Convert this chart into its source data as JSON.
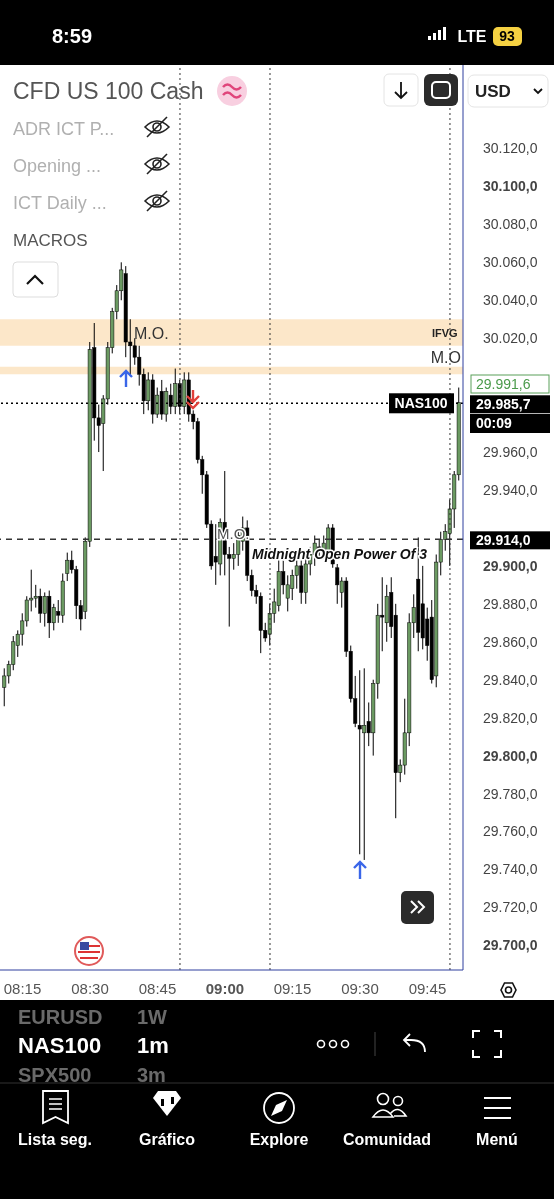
{
  "chart_data": {
    "type": "candlestick",
    "title": "CFD US 100 Cash",
    "x": [
      8.1833,
      8.2,
      8.2167,
      8.2333,
      8.25,
      8.2667,
      8.2833,
      8.3,
      8.3167,
      8.3333,
      8.35,
      8.3667,
      8.3833,
      8.4,
      8.4167,
      8.4333,
      8.45,
      8.4667,
      8.4833,
      8.5,
      8.5167,
      8.5333,
      8.55,
      8.5667,
      8.5833,
      8.6,
      8.6167,
      8.6333,
      8.65,
      8.6667,
      8.6833,
      8.7,
      8.7167,
      8.7333,
      8.75,
      8.7667,
      8.7833,
      8.8,
      8.8167,
      8.8333,
      8.85,
      8.8667,
      8.8833,
      8.9,
      8.9167,
      8.9333,
      8.95,
      8.9667,
      8.9833,
      9.0,
      9.0167,
      9.0333,
      9.05,
      9.0667,
      9.0833,
      9.1,
      9.1167,
      9.1333,
      9.15,
      9.1667,
      9.1833,
      9.2,
      9.2167,
      9.2333,
      9.25,
      9.2667,
      9.2833,
      9.3,
      9.3167,
      9.3333,
      9.35,
      9.3667,
      9.3833,
      9.4,
      9.4167,
      9.4333,
      9.45,
      9.4667,
      9.4833,
      9.5,
      9.5167,
      9.5333,
      9.55,
      9.5667,
      9.5833,
      9.6,
      9.6167,
      9.6333,
      9.65,
      9.6667,
      9.6833,
      9.7,
      9.7167,
      9.7333,
      9.75,
      9.7667,
      9.7833,
      9.8,
      9.8167,
      9.8333,
      9.85,
      9.8667
    ],
    "ohlc": [
      [
        29836,
        29846,
        29826,
        29842
      ],
      [
        29842,
        29850,
        29838,
        29848
      ],
      [
        29848,
        29863,
        29845,
        29860
      ],
      [
        29858,
        29866,
        29852,
        29864
      ],
      [
        29864,
        29875,
        29858,
        29871
      ],
      [
        29871,
        29884,
        29868,
        29882
      ],
      [
        29882,
        29898,
        29876,
        29883
      ],
      [
        29883,
        29890,
        29878,
        29884
      ],
      [
        29884,
        29888,
        29870,
        29875
      ],
      [
        29875,
        29886,
        29868,
        29884
      ],
      [
        29884,
        29887,
        29862,
        29870
      ],
      [
        29870,
        29880,
        29866,
        29878
      ],
      [
        29876,
        29882,
        29870,
        29874
      ],
      [
        29874,
        29896,
        29870,
        29892
      ],
      [
        29896,
        29907,
        29892,
        29903
      ],
      [
        29903,
        29908,
        29896,
        29898
      ],
      [
        29898,
        29900,
        29872,
        29879
      ],
      [
        29879,
        29882,
        29866,
        29872
      ],
      [
        29876,
        29915,
        29872,
        29913
      ],
      [
        29913,
        30018,
        29910,
        30014
      ],
      [
        30015,
        30028,
        29966,
        29978
      ],
      [
        29978,
        29985,
        29960,
        29974
      ],
      [
        29975,
        29990,
        29950,
        29988
      ],
      [
        29988,
        30018,
        29985,
        30015
      ],
      [
        30015,
        30036,
        30012,
        30034
      ],
      [
        30034,
        30048,
        30030,
        30045
      ],
      [
        30045,
        30060,
        30040,
        30056
      ],
      [
        30054,
        30058,
        30010,
        30018
      ],
      [
        30018,
        30030,
        30000,
        30016
      ],
      [
        30016,
        30020,
        30006,
        30010
      ],
      [
        30010,
        30016,
        29995,
        30001
      ],
      [
        30001,
        30004,
        29980,
        29987
      ],
      [
        29987,
        30002,
        29982,
        29998
      ],
      [
        29998,
        30001,
        29975,
        29980
      ],
      [
        29980,
        29994,
        29978,
        29990
      ],
      [
        29992,
        29998,
        29977,
        29980
      ],
      [
        29980,
        29994,
        29976,
        29992
      ],
      [
        29990,
        29996,
        29980,
        29984
      ],
      [
        29984,
        30004,
        29980,
        29996
      ],
      [
        29996,
        29998,
        29980,
        29984
      ],
      [
        29984,
        30002,
        29980,
        29998
      ],
      [
        29998,
        30002,
        29976,
        29980
      ],
      [
        29980,
        29982,
        29972,
        29976
      ],
      [
        29976,
        29978,
        29954,
        29956
      ],
      [
        29956,
        29958,
        29938,
        29948
      ],
      [
        29948,
        29950,
        29920,
        29922
      ],
      [
        29922,
        29924,
        29898,
        29900
      ],
      [
        29905,
        29922,
        29890,
        29902
      ],
      [
        29901,
        29925,
        29895,
        29923
      ],
      [
        29923,
        29950,
        29895,
        29906
      ],
      [
        29906,
        29910,
        29868,
        29904
      ],
      [
        29904,
        29912,
        29898,
        29906
      ],
      [
        29906,
        29918,
        29900,
        29916
      ],
      [
        29913,
        29926,
        29908,
        29920
      ],
      [
        29920,
        29924,
        29892,
        29895
      ],
      [
        29895,
        29898,
        29884,
        29887
      ],
      [
        29887,
        29890,
        29880,
        29884
      ],
      [
        29884,
        29886,
        29854,
        29866
      ],
      [
        29866,
        29870,
        29860,
        29862
      ],
      [
        29864,
        29880,
        29858,
        29875
      ],
      [
        29875,
        29888,
        29870,
        29881
      ],
      [
        29879,
        29904,
        29876,
        29897
      ],
      [
        29897,
        29903,
        29885,
        29890
      ],
      [
        29883,
        29895,
        29876,
        29890
      ],
      [
        29888,
        29898,
        29882,
        29895
      ],
      [
        29895,
        29904,
        29888,
        29900
      ],
      [
        29900,
        29903,
        29880,
        29886
      ],
      [
        29886,
        29905,
        29880,
        29901
      ],
      [
        29901,
        29910,
        29895,
        29906
      ],
      [
        29906,
        29916,
        29900,
        29912
      ],
      [
        29910,
        29914,
        29904,
        29908
      ],
      [
        29908,
        29916,
        29904,
        29912
      ],
      [
        29908,
        29922,
        29904,
        29920
      ],
      [
        29920,
        29922,
        29899,
        29901
      ],
      [
        29899,
        29901,
        29880,
        29890
      ],
      [
        29886,
        29894,
        29878,
        29892
      ],
      [
        29892,
        29894,
        29852,
        29855
      ],
      [
        29855,
        29858,
        29828,
        29830
      ],
      [
        29830,
        29842,
        29815,
        29817
      ],
      [
        29816,
        29845,
        29748,
        29814
      ],
      [
        29812,
        29846,
        29745,
        29816
      ],
      [
        29818,
        29828,
        29805,
        29812
      ],
      [
        29812,
        29840,
        29800,
        29838
      ],
      [
        29838,
        29880,
        29830,
        29874
      ],
      [
        29874,
        29894,
        29855,
        29873
      ],
      [
        29870,
        29890,
        29860,
        29884
      ],
      [
        29886,
        29894,
        29862,
        29868
      ],
      [
        29874,
        29880,
        29767,
        29791
      ],
      [
        29791,
        29798,
        29786,
        29795
      ],
      [
        29795,
        29830,
        29790,
        29812
      ],
      [
        29812,
        29875,
        29805,
        29870
      ],
      [
        29870,
        29885,
        29862,
        29878
      ],
      [
        29893,
        29915,
        29855,
        29865
      ],
      [
        29880,
        29900,
        29856,
        29862
      ],
      [
        29872,
        29878,
        29850,
        29858
      ],
      [
        29873,
        29882,
        29838,
        29840
      ],
      [
        29842,
        29906,
        29836,
        29902
      ],
      [
        29902,
        29918,
        29895,
        29914
      ],
      [
        29914,
        29922,
        29908,
        29918
      ],
      [
        29917,
        29935,
        29900,
        29930
      ],
      [
        29930,
        29950,
        29920,
        29948
      ],
      [
        29948,
        29994,
        29945,
        29986
      ]
    ],
    "xlim": [
      8.1667,
      9.8816
    ],
    "xticks": [
      {
        "value": 8.25,
        "label": "08:15"
      },
      {
        "value": 8.5,
        "label": "08:30"
      },
      {
        "value": 8.75,
        "label": "08:45"
      },
      {
        "value": 9,
        "label": "09:00"
      },
      {
        "value": 9.25,
        "label": "09:15"
      },
      {
        "value": 9.5,
        "label": "09:30"
      },
      {
        "value": 9.75,
        "label": "09:45"
      }
    ],
    "ylim": [
      29687,
      30164
    ],
    "yticks": [
      {
        "value": 29700,
        "label": "29.700,0"
      },
      {
        "value": 29720,
        "label": "29.720,0"
      },
      {
        "value": 29740,
        "label": "29.740,0"
      },
      {
        "value": 29760,
        "label": "29.760,0"
      },
      {
        "value": 29780,
        "label": "29.780,0"
      },
      {
        "value": 29800,
        "label": "29.800,0"
      },
      {
        "value": 29820,
        "label": "29.820,0"
      },
      {
        "value": 29840,
        "label": "29.840,0"
      },
      {
        "value": 29860,
        "label": "29.860,0"
      },
      {
        "value": 29880,
        "label": "29.880,0"
      },
      {
        "value": 29900,
        "label": "29.900,0"
      },
      {
        "value": 29940,
        "label": "29.940,0"
      },
      {
        "value": 29960,
        "label": "29.960,0"
      },
      {
        "value": 30020,
        "label": "30.020,0"
      },
      {
        "value": 30040,
        "label": "30.040,0"
      },
      {
        "value": 30060,
        "label": "30.060,0"
      },
      {
        "value": 30080,
        "label": "30.080,0"
      },
      {
        "value": 30100,
        "label": "30.100,0"
      },
      {
        "value": 30120,
        "label": "30.120,0"
      }
    ],
    "ref_lines": [
      {
        "axis": "y",
        "value": 29985.7,
        "label": "29.985,7",
        "line_style": "dotted",
        "color": "#000000"
      },
      {
        "axis": "y",
        "value": 29914,
        "label": "29.914,0",
        "line_style": "dashed",
        "color": "#333333"
      },
      {
        "axis": "x",
        "value": 8.8333,
        "line_style": "dotted",
        "color": "#333333"
      },
      {
        "axis": "x",
        "value": 9.1667,
        "line_style": "dotted",
        "color": "#333333"
      },
      {
        "axis": "x",
        "value": 9.8333,
        "line_style": "dotted",
        "color": "#333333"
      }
    ],
    "bands": [
      {
        "axis": "y",
        "from": 30016,
        "to": 30030,
        "label": "M.O.",
        "color": "#fbe3c0"
      },
      {
        "axis": "y",
        "from": 30001,
        "to": 30005,
        "label": "M.O",
        "color": "#fbe3c0"
      }
    ],
    "annotations": [
      "8:59",
      "LTE",
      "93",
      "ADR ICT P...",
      "Opening ...",
      "ICT Daily ...",
      "MACROS",
      "USD",
      "EURUSD",
      "1W",
      "NAS100",
      "1m",
      "SPX500",
      "3m",
      "Lista seg.",
      "Gráfico",
      "Explore",
      "Comunidad",
      "Menú",
      "IFVG",
      "29.991,6",
      "00:09",
      {
        "text": "Midnight Open Power Of 3",
        "x": 9.1,
        "y": 29906
      },
      {
        "text": "M.O.",
        "x": 9.0,
        "y": 29911
      },
      {
        "text": "NAS100",
        "y": 29985.7
      }
    ],
    "colors": [
      "#6b9a62",
      "#6b9a62",
      "#6b9a62",
      "#6b9a62",
      "#6b9a62",
      "#6b9a62",
      "#6b9a62",
      "#6b9a62",
      "#000000",
      "#6b9a62",
      "#000000",
      "#6b9a62",
      "#000000",
      "#6b9a62",
      "#6b9a62",
      "#000000",
      "#000000",
      "#000000",
      "#6b9a62",
      "#6b9a62",
      "#000000",
      "#000000",
      "#6b9a62",
      "#6b9a62",
      "#6b9a62",
      "#6b9a62",
      "#6b9a62",
      "#000000",
      "#000000",
      "#000000",
      "#000000",
      "#000000",
      "#6b9a62",
      "#000000",
      "#6b9a62",
      "#000000",
      "#6b9a62",
      "#000000",
      "#6b9a62",
      "#000000",
      "#6b9a62",
      "#000000",
      "#000000",
      "#000000",
      "#000000",
      "#000000",
      "#000000",
      "#000000",
      "#6b9a62",
      "#000000",
      "#000000",
      "#6b9a62",
      "#6b9a62",
      "#6b9a62",
      "#000000",
      "#000000",
      "#000000",
      "#000000",
      "#000000",
      "#6b9a62",
      "#6b9a62",
      "#6b9a62",
      "#000000",
      "#6b9a62",
      "#6b9a62",
      "#6b9a62",
      "#000000",
      "#6b9a62",
      "#6b9a62",
      "#6b9a62",
      "#000000",
      "#6b9a62",
      "#6b9a62",
      "#000000",
      "#000000",
      "#6b9a62",
      "#000000",
      "#000000",
      "#000000",
      "#000000",
      "#6b9a62",
      "#000000",
      "#6b9a62",
      "#6b9a62",
      "#000000",
      "#6b9a62",
      "#000000",
      "#000000",
      "#6b9a62",
      "#6b9a62",
      "#6b9a62",
      "#6b9a62",
      "#000000",
      "#000000",
      "#000000",
      "#000000",
      "#6b9a62",
      "#6b9a62",
      "#6b9a62",
      "#6b9a62",
      "#6b9a62",
      "#6b9a62"
    ]
  }
}
